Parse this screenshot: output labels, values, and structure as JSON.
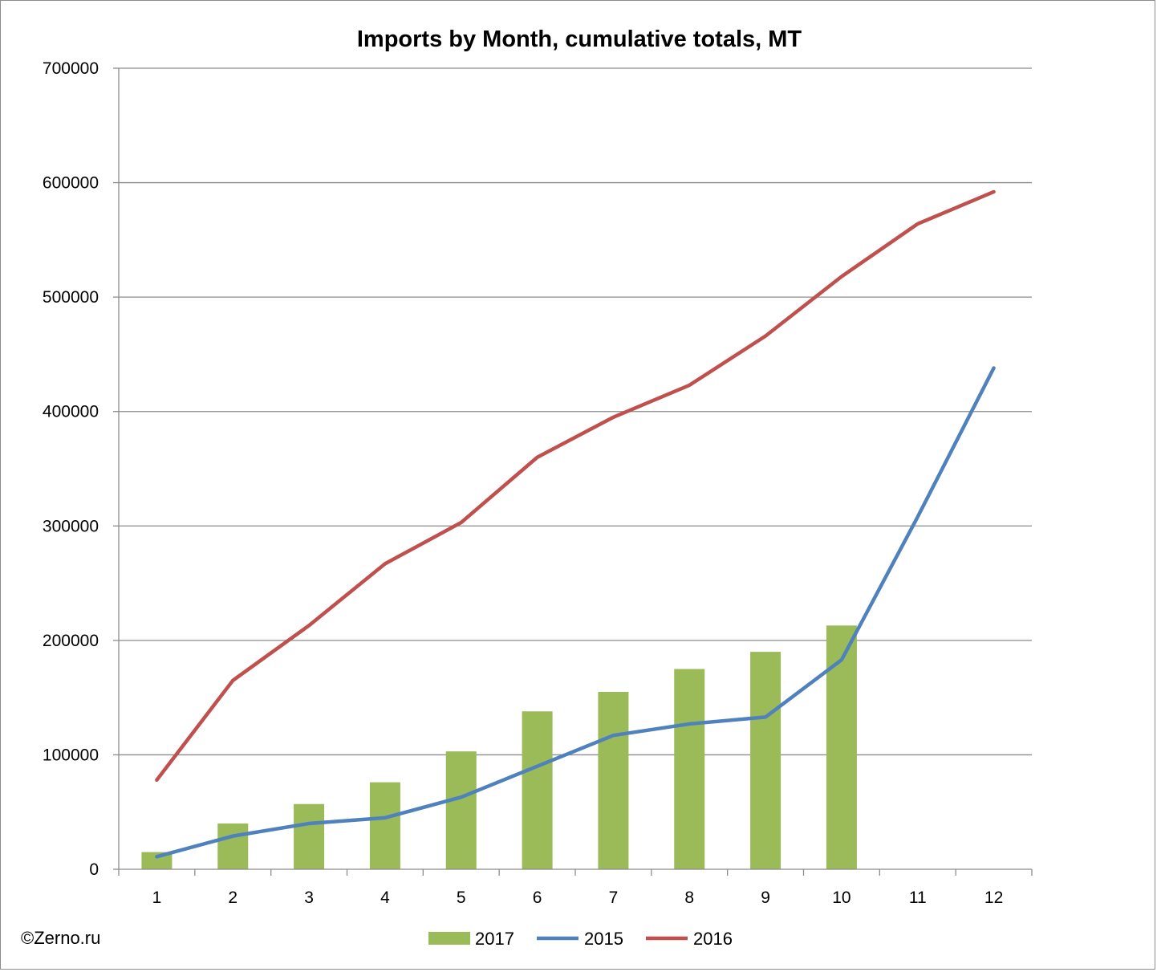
{
  "chart_data": {
    "type": "bar+line",
    "title": "Imports by Month, cumulative totals, MT",
    "xlabel": "",
    "ylabel": "",
    "categories": [
      "1",
      "2",
      "3",
      "4",
      "5",
      "6",
      "7",
      "8",
      "9",
      "10",
      "11",
      "12"
    ],
    "ylim": [
      0,
      700000
    ],
    "yticks": [
      0,
      100000,
      200000,
      300000,
      400000,
      500000,
      600000,
      700000
    ],
    "ytick_labels": [
      "0",
      "100000",
      "200000",
      "300000",
      "400000",
      "500000",
      "600000",
      "700000"
    ],
    "grid": true,
    "legend_position": "bottom",
    "series": [
      {
        "name": "2017",
        "kind": "bar",
        "color": "#9bbb59",
        "values": [
          15000,
          40000,
          57000,
          76000,
          103000,
          138000,
          155000,
          175000,
          190000,
          213000,
          null,
          null
        ]
      },
      {
        "name": "2015",
        "kind": "line",
        "color": "#4f81bd",
        "values": [
          11000,
          29000,
          40000,
          45000,
          63000,
          90000,
          117000,
          127000,
          133000,
          183000,
          308000,
          438000
        ]
      },
      {
        "name": "2016",
        "kind": "line",
        "color": "#c0504d",
        "values": [
          78000,
          165000,
          213000,
          267000,
          303000,
          360000,
          395000,
          423000,
          466000,
          518000,
          564000,
          592000
        ]
      }
    ]
  },
  "credit": "©Zerno.ru"
}
